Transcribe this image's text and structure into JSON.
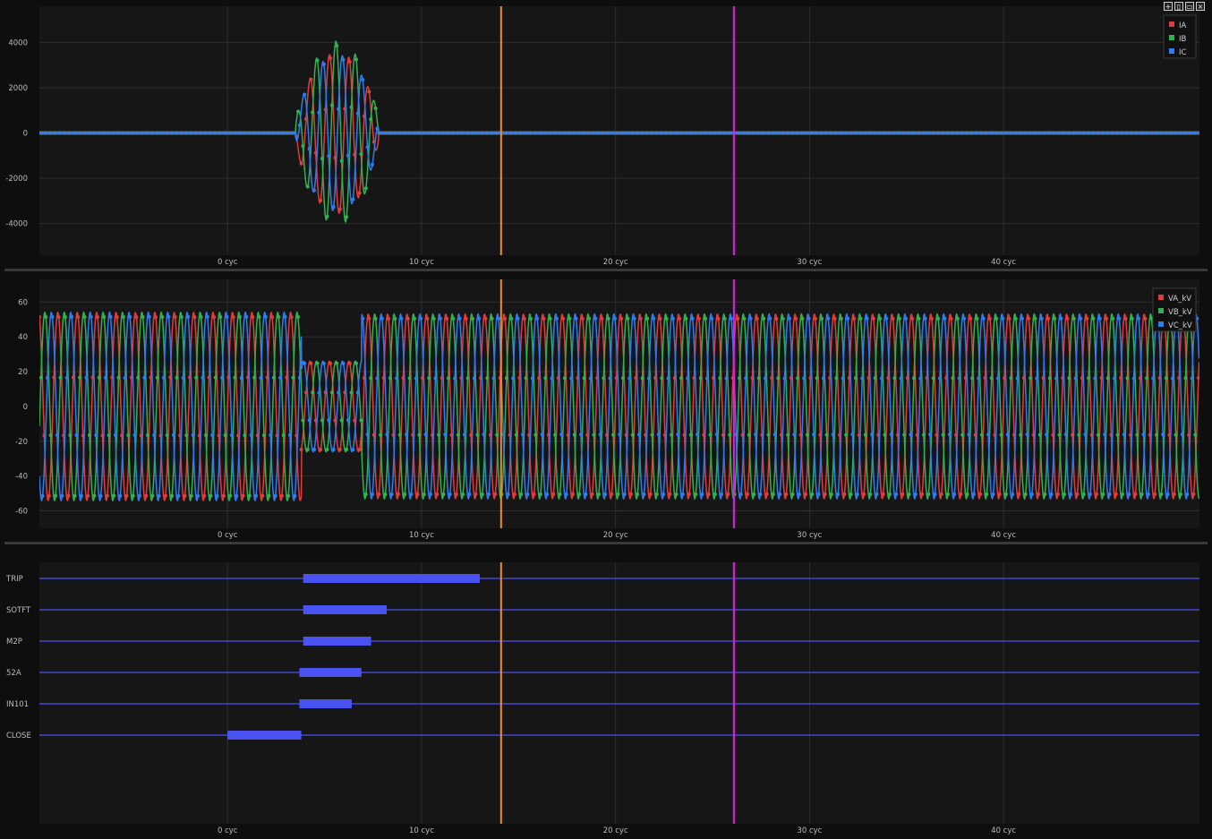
{
  "toolbar": {
    "icons": [
      "plus-icon",
      "split-vertical-icon",
      "split-horizontal-icon",
      "close-icon"
    ]
  },
  "colors": {
    "background": "#161616",
    "grid": "#2e2e2e",
    "cursor_a": "#f0901c",
    "cursor_b": "#e01ee8",
    "digital": "#4a52f2",
    "phase_a": "#e03c3c",
    "phase_b": "#34b050",
    "phase_c": "#2f7cf0"
  },
  "cursors": {
    "a_cyc": 14.1,
    "b_cyc": 26.1
  },
  "chart_data": [
    {
      "type": "line",
      "title": "",
      "xunit": "cyc",
      "xlim": [
        -9.7,
        50.1
      ],
      "xticks": [
        {
          "v": 0,
          "label": "0 cyc"
        },
        {
          "v": 10,
          "label": "10 cyc"
        },
        {
          "v": 20,
          "label": "20 cyc"
        },
        {
          "v": 30,
          "label": "30 cyc"
        },
        {
          "v": 40,
          "label": "40 cyc"
        }
      ],
      "ylim": [
        -5400,
        5600
      ],
      "yticks": [
        {
          "v": 4000,
          "label": "4000"
        },
        {
          "v": 2000,
          "label": "2000"
        },
        {
          "v": 0,
          "label": "0"
        },
        {
          "v": -2000,
          "label": "-2000"
        },
        {
          "v": -4000,
          "label": "-4000"
        }
      ],
      "legend": "top-right",
      "series": [
        {
          "name": "IA",
          "color": "#e03c3c",
          "amplitude": 3550,
          "phase_deg": 0
        },
        {
          "name": "IB",
          "color": "#34b050",
          "amplitude": 4050,
          "phase_deg": -120
        },
        {
          "name": "IC",
          "color": "#2f7cf0",
          "amplitude": 3450,
          "phase_deg": 120
        }
      ],
      "fault_window_cyc": [
        3.5,
        7.8
      ],
      "steady_amplitude": 0
    },
    {
      "type": "line",
      "title": "",
      "xunit": "cyc",
      "xlim": [
        -9.7,
        50.1
      ],
      "xticks": [
        {
          "v": 0,
          "label": "0 cyc"
        },
        {
          "v": 10,
          "label": "10 cyc"
        },
        {
          "v": 20,
          "label": "20 cyc"
        },
        {
          "v": 30,
          "label": "30 cyc"
        },
        {
          "v": 40,
          "label": "40 cyc"
        }
      ],
      "ylim": [
        -70,
        73
      ],
      "yticks": [
        {
          "v": 60,
          "label": "60"
        },
        {
          "v": 40,
          "label": "40"
        },
        {
          "v": 20,
          "label": "20"
        },
        {
          "v": 0,
          "label": "0"
        },
        {
          "v": -20,
          "label": "-20"
        },
        {
          "v": -40,
          "label": "-40"
        },
        {
          "v": -60,
          "label": "-60"
        }
      ],
      "legend": "top-right",
      "series": [
        {
          "name": "VA_kV",
          "color": "#e03c3c",
          "amplitude": 55,
          "phase_deg": 0
        },
        {
          "name": "VB_kV",
          "color": "#34b050",
          "amplitude": 55,
          "phase_deg": -120
        },
        {
          "name": "VC_kV",
          "color": "#2f7cf0",
          "amplitude": 55,
          "phase_deg": 120
        }
      ],
      "sag_window_cyc": [
        3.8,
        6.9
      ],
      "sag_amplitude": 26,
      "pre_amplitude": 54,
      "post_amplitude": 53
    },
    {
      "type": "bar",
      "title": "",
      "xunit": "cyc",
      "xlim": [
        -9.7,
        50.1
      ],
      "xticks": [
        {
          "v": 0,
          "label": "0 cyc"
        },
        {
          "v": 10,
          "label": "10 cyc"
        },
        {
          "v": 20,
          "label": "20 cyc"
        },
        {
          "v": 30,
          "label": "30 cyc"
        },
        {
          "v": 40,
          "label": "40 cyc"
        }
      ],
      "channels": [
        {
          "label": "TRIP",
          "on": 3.9,
          "off": 13.0
        },
        {
          "label": "SOTFT",
          "on": 3.9,
          "off": 8.2
        },
        {
          "label": "M2P",
          "on": 3.9,
          "off": 7.4
        },
        {
          "label": "52A",
          "on": 3.7,
          "off": 6.9
        },
        {
          "label": "IN101",
          "on": 3.7,
          "off": 6.4
        },
        {
          "label": "CLOSE",
          "on": 0.0,
          "off": 3.8
        }
      ]
    }
  ]
}
